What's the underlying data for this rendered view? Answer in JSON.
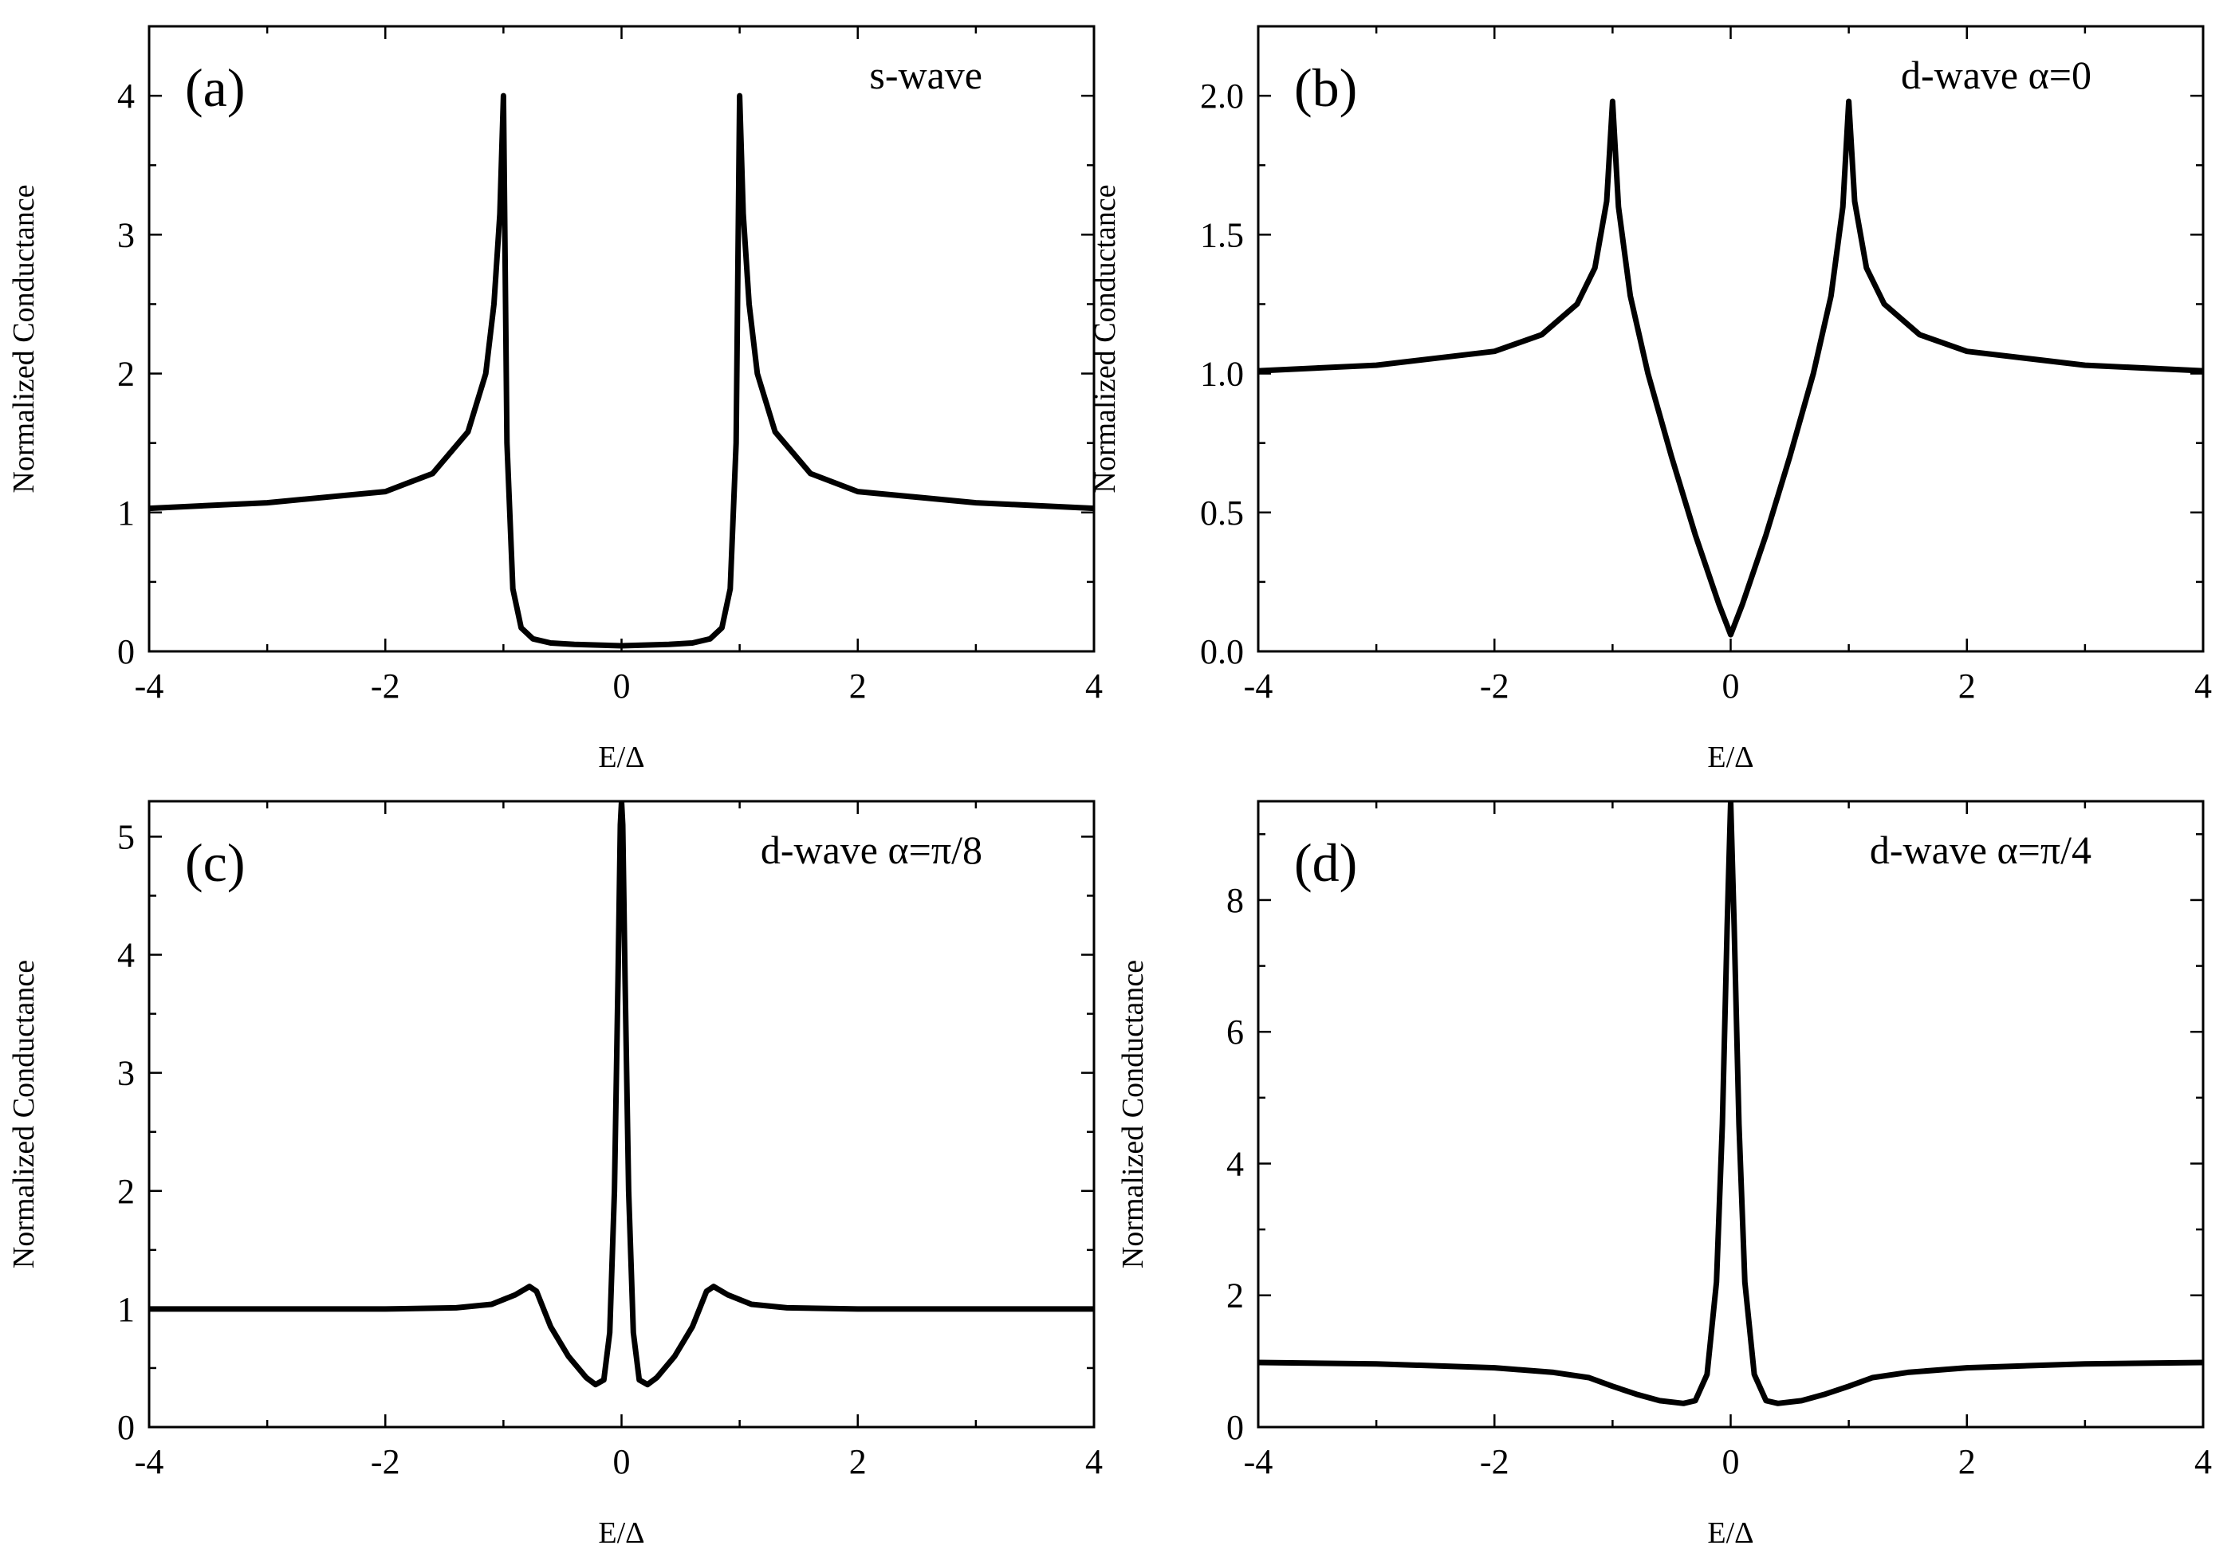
{
  "chart_data": [
    {
      "type": "line",
      "panel_label": "(a)",
      "annotation": "s-wave",
      "xlabel": "E/Δ",
      "ylabel": "Normalized Conductance",
      "xlim": [
        -4,
        4
      ],
      "ylim": [
        0,
        4.5
      ],
      "xticks": [
        "-4",
        "-2",
        "0",
        "2",
        "4"
      ],
      "yticks": [
        "0",
        "1",
        "2",
        "3",
        "4"
      ],
      "series": [
        {
          "x": [
            -4,
            -3,
            -2,
            -1.6,
            -1.3,
            -1.15,
            -1.08,
            -1.03,
            -1.0,
            -0.97,
            -0.92,
            -0.85,
            -0.75,
            -0.6,
            -0.4,
            0,
            0.4,
            0.6,
            0.75,
            0.85,
            0.92,
            0.97,
            1.0,
            1.03,
            1.08,
            1.15,
            1.3,
            1.6,
            2,
            3,
            4
          ],
          "y": [
            1.03,
            1.07,
            1.15,
            1.28,
            1.58,
            2.0,
            2.5,
            3.15,
            4.0,
            1.5,
            0.45,
            0.17,
            0.09,
            0.06,
            0.05,
            0.04,
            0.05,
            0.06,
            0.09,
            0.17,
            0.45,
            1.5,
            4.0,
            3.15,
            2.5,
            2.0,
            1.58,
            1.28,
            1.15,
            1.07,
            1.03
          ]
        }
      ]
    },
    {
      "type": "line",
      "panel_label": "(b)",
      "annotation": "d-wave  α=0",
      "xlabel": "E/Δ",
      "ylabel": "Normalized Conductance",
      "xlim": [
        -4,
        4
      ],
      "ylim": [
        0,
        2.25
      ],
      "xticks": [
        "-4",
        "-2",
        "0",
        "2",
        "4"
      ],
      "yticks": [
        "0.0",
        "0.5",
        "1.0",
        "1.5",
        "2.0"
      ],
      "series": [
        {
          "x": [
            -4,
            -3,
            -2,
            -1.6,
            -1.3,
            -1.15,
            -1.05,
            -1.0,
            -0.95,
            -0.85,
            -0.7,
            -0.5,
            -0.3,
            -0.1,
            0,
            0.1,
            0.3,
            0.5,
            0.7,
            0.85,
            0.95,
            1.0,
            1.05,
            1.15,
            1.3,
            1.6,
            2,
            3,
            4
          ],
          "y": [
            1.01,
            1.03,
            1.08,
            1.14,
            1.25,
            1.38,
            1.62,
            1.98,
            1.6,
            1.28,
            1.0,
            0.7,
            0.42,
            0.17,
            0.06,
            0.17,
            0.42,
            0.7,
            1.0,
            1.28,
            1.6,
            1.98,
            1.62,
            1.38,
            1.25,
            1.14,
            1.08,
            1.03,
            1.01
          ]
        }
      ]
    },
    {
      "type": "line",
      "panel_label": "(c)",
      "annotation": "d-wave  α=π/8",
      "xlabel": "E/Δ",
      "ylabel": "Normalized Conductance",
      "xlim": [
        -4,
        4
      ],
      "ylim": [
        0,
        5.3
      ],
      "xticks": [
        "-4",
        "-2",
        "0",
        "2",
        "4"
      ],
      "yticks": [
        "0",
        "1",
        "2",
        "3",
        "4",
        "5"
      ],
      "series": [
        {
          "x": [
            -4,
            -3,
            -2,
            -1.4,
            -1.1,
            -0.9,
            -0.78,
            -0.72,
            -0.6,
            -0.45,
            -0.3,
            -0.22,
            -0.15,
            -0.1,
            -0.06,
            -0.03,
            -0.01,
            0,
            0.01,
            0.03,
            0.06,
            0.1,
            0.15,
            0.22,
            0.3,
            0.45,
            0.6,
            0.72,
            0.78,
            0.9,
            1.1,
            1.4,
            2,
            3,
            4
          ],
          "y": [
            1.0,
            1.0,
            1.0,
            1.01,
            1.04,
            1.12,
            1.19,
            1.15,
            0.85,
            0.6,
            0.42,
            0.36,
            0.4,
            0.8,
            2.0,
            3.8,
            5.1,
            5.3,
            5.1,
            3.8,
            2.0,
            0.8,
            0.4,
            0.36,
            0.42,
            0.6,
            0.85,
            1.15,
            1.19,
            1.12,
            1.04,
            1.01,
            1.0,
            1.0,
            1.0
          ]
        }
      ]
    },
    {
      "type": "line",
      "panel_label": "(d)",
      "annotation": "d-wave  α=π/4",
      "xlabel": "E/Δ",
      "ylabel": "Normalized Conductance",
      "xlim": [
        -4,
        4
      ],
      "ylim": [
        0,
        9.5
      ],
      "xticks": [
        "-4",
        "-2",
        "0",
        "2",
        "4"
      ],
      "yticks": [
        "0",
        "2",
        "4",
        "6",
        "8"
      ],
      "series": [
        {
          "x": [
            -4,
            -3,
            -2,
            -1.5,
            -1.2,
            -1.0,
            -0.8,
            -0.6,
            -0.4,
            -0.3,
            -0.2,
            -0.12,
            -0.07,
            -0.03,
            0,
            0.03,
            0.07,
            0.12,
            0.2,
            0.3,
            0.4,
            0.6,
            0.8,
            1.0,
            1.2,
            1.5,
            2,
            3,
            4
          ],
          "y": [
            0.98,
            0.96,
            0.9,
            0.83,
            0.75,
            0.62,
            0.5,
            0.4,
            0.36,
            0.4,
            0.8,
            2.2,
            4.6,
            7.6,
            9.5,
            7.6,
            4.6,
            2.2,
            0.8,
            0.4,
            0.36,
            0.4,
            0.5,
            0.62,
            0.75,
            0.83,
            0.9,
            0.96,
            0.98
          ]
        }
      ]
    }
  ]
}
